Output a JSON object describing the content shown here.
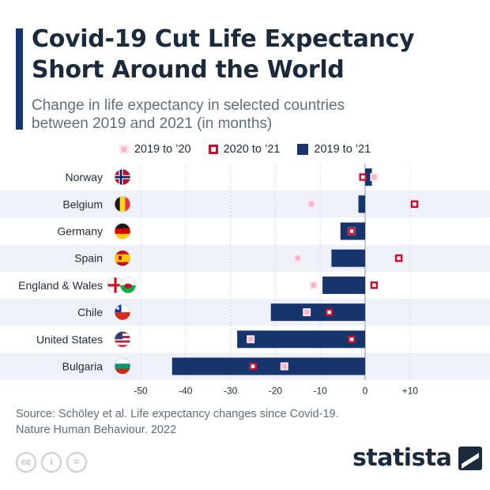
{
  "header": {
    "title_line1": "Covid-19 Cut Life Expectancy",
    "title_line2": "Short Around the World",
    "subtitle_line1": "Change in life expectancy in selected countries",
    "subtitle_line2": "between 2019 and 2021 (in months)"
  },
  "colors": {
    "navy": "#15356c",
    "red": "#c8102e",
    "pink": "#f6b5cd",
    "band": "#eef2f8",
    "text": "#1e2a3a"
  },
  "chart_data": {
    "type": "bar",
    "orientation": "horizontal",
    "title": "Covid-19 Cut Life Expectancy Short Around the World",
    "subtitle": "Change in life expectancy in selected countries between 2019 and 2021 (in months)",
    "xlim": [
      -55,
      14
    ],
    "x_ticks": [
      -50,
      -40,
      -30,
      -20,
      -10,
      0,
      10
    ],
    "x_tick_labels": [
      "-50",
      "-40",
      "-30",
      "-20",
      "-10",
      "0",
      "+10"
    ],
    "categories": [
      "Norway",
      "Belgium",
      "Germany",
      "Spain",
      "England & Wales",
      "Chile",
      "United States",
      "Bulgaria"
    ],
    "series": [
      {
        "name": "2019 to ’20",
        "mark": "marker",
        "values": [
          2,
          -12,
          -3,
          -15,
          -11.5,
          -13,
          -25.5,
          -18
        ]
      },
      {
        "name": "2020 to ’21",
        "mark": "marker",
        "values": [
          -0.5,
          11,
          -3,
          7.5,
          2,
          -8,
          -3,
          -25
        ]
      },
      {
        "name": "2019 to ’21",
        "mark": "bar",
        "values": [
          1.5,
          -1.5,
          -5.5,
          -7.5,
          -9.5,
          -21,
          -28.5,
          -43
        ]
      }
    ],
    "legend_position": "top",
    "grid": true
  },
  "footer": {
    "source_line1": "Source: Schöley et al. Life expectancy changes since Covid-19.",
    "source_line2": "Nature Human Behaviour. 2022",
    "license_icons": [
      "creative-commons-icon",
      "attribution-icon",
      "no-derivatives-icon"
    ],
    "license_glyphs": [
      "cc",
      "i",
      "="
    ],
    "brand": "statista"
  }
}
